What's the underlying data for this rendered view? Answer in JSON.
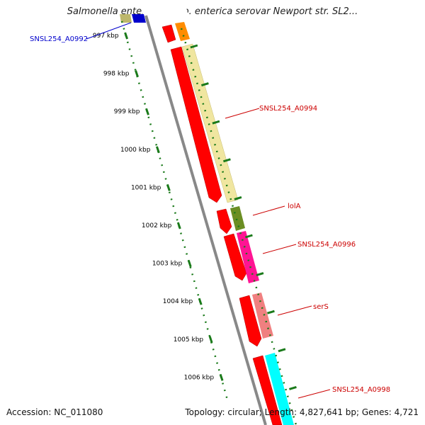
{
  "title": "Salmonella enterica subsp. enterica serovar Newport str. SL2...",
  "footer": {
    "accession": "Accession: NC_011080",
    "stats": "Topology: circular; Length: 4,827,641 bp; Genes: 4,721"
  },
  "ticks": [
    {
      "label": "997 kbp",
      "pos": 997
    },
    {
      "label": "998 kbp",
      "pos": 998
    },
    {
      "label": "999 kbp",
      "pos": 999
    },
    {
      "label": "1000 kbp",
      "pos": 1000
    },
    {
      "label": "1001 kbp",
      "pos": 1001
    },
    {
      "label": "1002 kbp",
      "pos": 1002
    },
    {
      "label": "1003 kbp",
      "pos": 1003
    },
    {
      "label": "1004 kbp",
      "pos": 1004
    },
    {
      "label": "1005 kbp",
      "pos": 1005
    },
    {
      "label": "1006 kbp",
      "pos": 1006
    }
  ],
  "labels": [
    {
      "text": "SNSL254_A0992",
      "color": "#0000cc"
    },
    {
      "text": "SNSL254_A0994",
      "color": "#cc0000"
    },
    {
      "text": "lolA",
      "color": "#cc0000"
    },
    {
      "text": "SNSL254_A0996",
      "color": "#cc0000"
    },
    {
      "text": "serS",
      "color": "#cc0000"
    },
    {
      "text": "SNSL254_A0998",
      "color": "#cc0000"
    }
  ],
  "colors": {
    "backbone": "#888888",
    "tick_mark": "#1a7a1a",
    "cds": "#ff0000",
    "orange_gene": "#ff8c00",
    "yellow_gene": "#f0e6a0",
    "olive_gene": "#6b8e23",
    "pink_gene": "#ff1493",
    "salmon_gene": "#f08080",
    "cyan_gene": "#00ffff",
    "blue_gene": "#0000cc",
    "khaki_gene": "#bdb76b"
  }
}
